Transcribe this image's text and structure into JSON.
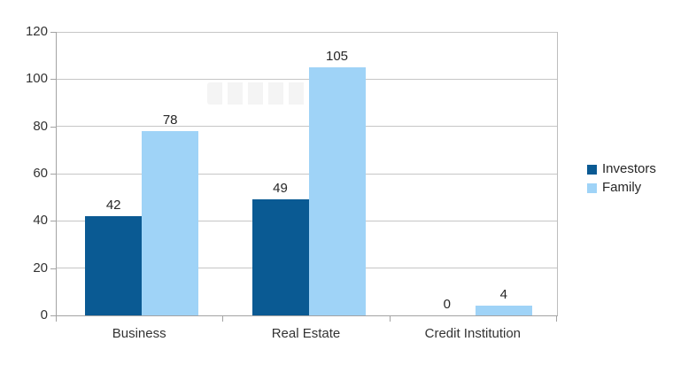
{
  "chart_data": {
    "type": "bar",
    "title": "",
    "categories": [
      "Business",
      "Real Estate",
      "Credit Institution"
    ],
    "series": [
      {
        "name": "Investors",
        "color": "#0a5a93",
        "values": [
          42,
          49,
          0
        ]
      },
      {
        "name": "Family",
        "color": "#9fd3f7",
        "values": [
          78,
          105,
          4
        ]
      }
    ],
    "ylabel": "",
    "xlabel": "",
    "ylim": [
      0,
      120
    ],
    "yticks": [
      0,
      20,
      40,
      60,
      80,
      100,
      120
    ],
    "grid": true,
    "legend_position": "right",
    "value_labels_shown": true,
    "colors": {
      "gridline": "#c6c6c6",
      "axis": "#a3a3a3",
      "text": "#333333"
    }
  }
}
